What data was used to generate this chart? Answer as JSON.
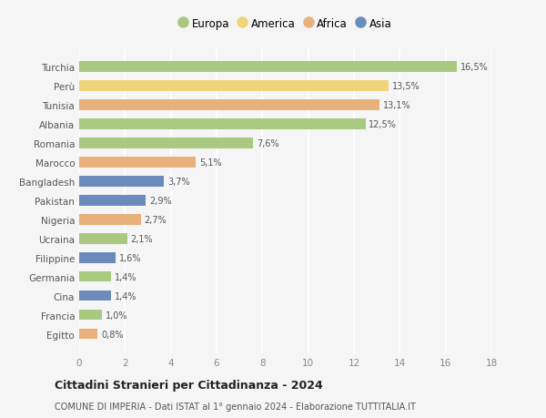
{
  "categories": [
    "Turchia",
    "Perù",
    "Tunisia",
    "Albania",
    "Romania",
    "Marocco",
    "Bangladesh",
    "Pakistan",
    "Nigeria",
    "Ucraina",
    "Filippine",
    "Germania",
    "Cina",
    "Francia",
    "Egitto"
  ],
  "values": [
    16.5,
    13.5,
    13.1,
    12.5,
    7.6,
    5.1,
    3.7,
    2.9,
    2.7,
    2.1,
    1.6,
    1.4,
    1.4,
    1.0,
    0.8
  ],
  "continents": [
    "Europa",
    "America",
    "Africa",
    "Europa",
    "Europa",
    "Africa",
    "Asia",
    "Asia",
    "Africa",
    "Europa",
    "Asia",
    "Europa",
    "Asia",
    "Europa",
    "Africa"
  ],
  "colors": {
    "Europa": "#a8c97f",
    "America": "#f0d47a",
    "Africa": "#e8b07a",
    "Asia": "#6b8cba"
  },
  "legend_order": [
    "Europa",
    "America",
    "Africa",
    "Asia"
  ],
  "title": "Cittadini Stranieri per Cittadinanza - 2024",
  "subtitle": "COMUNE DI IMPERIA - Dati ISTAT al 1° gennaio 2024 - Elaborazione TUTTITALIA.IT",
  "xlim": [
    0,
    18
  ],
  "xticks": [
    0,
    2,
    4,
    6,
    8,
    10,
    12,
    14,
    16,
    18
  ],
  "background_color": "#f5f5f5",
  "grid_color": "#ffffff",
  "bar_height": 0.55
}
